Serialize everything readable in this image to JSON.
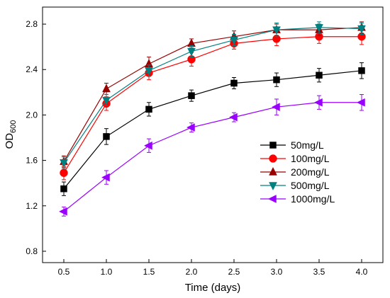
{
  "chart_data": {
    "type": "line",
    "xlabel": "Time (days)",
    "ylabel": "OD",
    "ylabel_sub": "600",
    "xlim": [
      0.25,
      4.25
    ],
    "ylim": [
      0.7,
      2.95
    ],
    "x_ticks": [
      "0.5",
      "1.0",
      "1.5",
      "2.0",
      "2.5",
      "3.0",
      "3.5",
      "4.0"
    ],
    "y_ticks": [
      "0.8",
      "1.2",
      "1.6",
      "2.0",
      "2.4",
      "2.8"
    ],
    "legend_position": "center-right",
    "grid": false,
    "x": [
      0.5,
      1.0,
      1.5,
      2.0,
      2.5,
      3.0,
      3.5,
      4.0
    ],
    "series": [
      {
        "name": "50mg/L",
        "color": "#000000",
        "marker": "square",
        "values": [
          1.35,
          1.81,
          2.05,
          2.17,
          2.28,
          2.31,
          2.35,
          2.39
        ],
        "errors": [
          0.06,
          0.07,
          0.06,
          0.05,
          0.05,
          0.06,
          0.06,
          0.07
        ]
      },
      {
        "name": "100mg/L",
        "color": "#ff0000",
        "marker": "circle",
        "values": [
          1.49,
          2.1,
          2.37,
          2.49,
          2.63,
          2.67,
          2.69,
          2.69
        ],
        "errors": [
          0.06,
          0.06,
          0.06,
          0.06,
          0.05,
          0.06,
          0.06,
          0.07
        ]
      },
      {
        "name": "200mg/L",
        "color": "#990000",
        "marker": "triangle-up",
        "values": [
          1.59,
          2.23,
          2.45,
          2.63,
          2.69,
          2.75,
          2.75,
          2.77
        ],
        "errors": [
          0.05,
          0.05,
          0.06,
          0.04,
          0.05,
          0.05,
          0.05,
          0.05
        ]
      },
      {
        "name": "500mg/L",
        "color": "#008080",
        "marker": "triangle-down",
        "values": [
          1.58,
          2.13,
          2.39,
          2.56,
          2.66,
          2.75,
          2.77,
          2.76
        ],
        "errors": [
          0.05,
          0.05,
          0.05,
          0.05,
          0.05,
          0.06,
          0.05,
          0.05
        ]
      },
      {
        "name": "1000mg/L",
        "color": "#9900ff",
        "marker": "triangle-left",
        "values": [
          1.15,
          1.45,
          1.73,
          1.89,
          1.98,
          2.07,
          2.11,
          2.11
        ],
        "errors": [
          0.04,
          0.06,
          0.06,
          0.04,
          0.04,
          0.07,
          0.06,
          0.07
        ]
      }
    ]
  }
}
